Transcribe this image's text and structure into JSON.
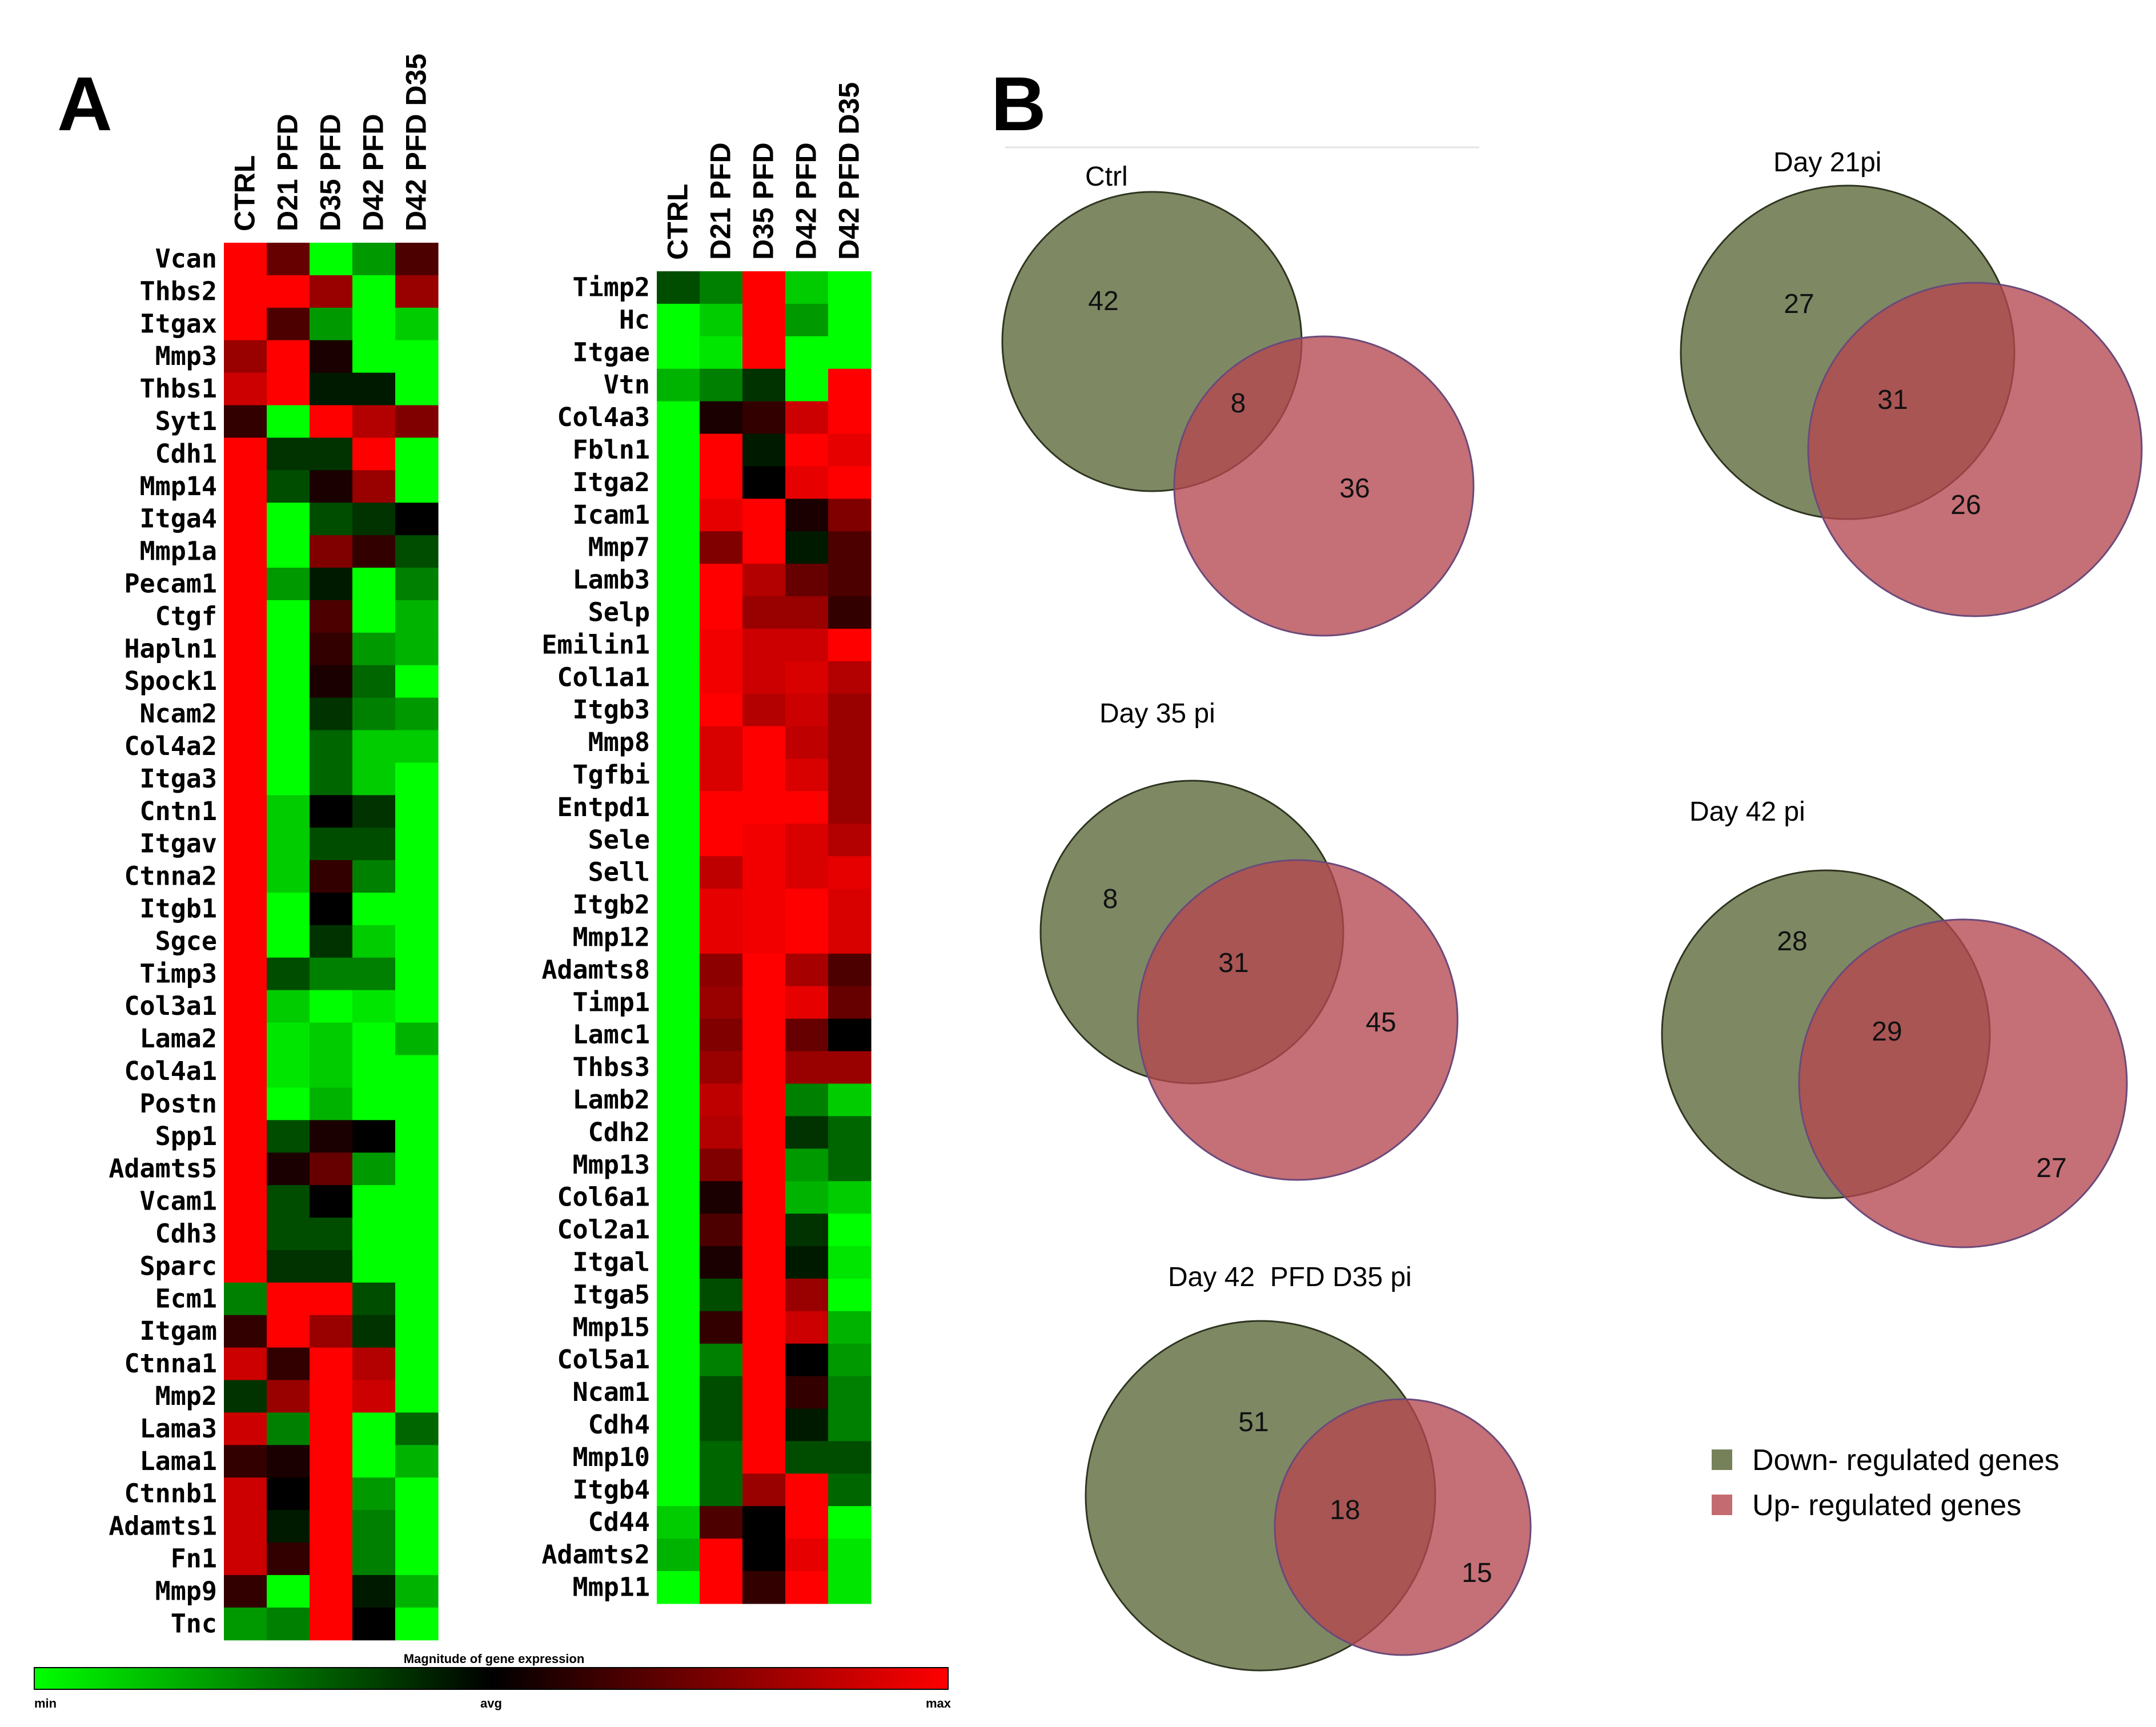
{
  "panel_labels": {
    "a": "A",
    "b": "B"
  },
  "colors": {
    "min": "#00ff00",
    "avg": "#000000",
    "max": "#ff0000",
    "down": "#5e6b3d",
    "up": "#b5464f"
  },
  "chart_data": [
    {
      "type": "heatmap",
      "title": "",
      "columns": [
        "CTRL",
        "D21 PFD",
        "D35 PFD",
        "D42 PFD",
        "D42 PFD D35"
      ],
      "rows": [
        "Vcan",
        "Thbs2",
        "Itgax",
        "Mmp3",
        "Thbs1",
        "Syt1",
        "Cdh1",
        "Mmp14",
        "Itga4",
        "Mmp1a",
        "Pecam1",
        "Ctgf",
        "Hapln1",
        "Spock1",
        "Ncam2",
        "Col4a2",
        "Itga3",
        "Cntn1",
        "Itgav",
        "Ctnna2",
        "Itgb1",
        "Sgce",
        "Timp3",
        "Col3a1",
        "Lama2",
        "Col4a1",
        "Postn",
        "Spp1",
        "Adamts5",
        "Vcam1",
        "Cdh3",
        "Sparc",
        "Ecm1",
        "Itgam",
        "Ctnna1",
        "Mmp2",
        "Lama3",
        "Lama1",
        "Ctnnb1",
        "Adamts1",
        "Fn1",
        "Mmp9",
        "Tnc"
      ],
      "values": [
        [
          1,
          0.4,
          -1,
          -0.6,
          0.3
        ],
        [
          1,
          1,
          0.6,
          -1,
          0.6
        ],
        [
          1,
          0.3,
          -0.6,
          -1,
          -0.8
        ],
        [
          0.6,
          1,
          0.1,
          -1,
          -1
        ],
        [
          0.8,
          1,
          -0.1,
          -0.1,
          -1
        ],
        [
          0.2,
          -1,
          1,
          0.7,
          0.5
        ],
        [
          1,
          -0.2,
          -0.2,
          1,
          -1
        ],
        [
          1,
          -0.3,
          0.1,
          0.6,
          -1
        ],
        [
          1,
          -1,
          -0.3,
          -0.2,
          0
        ],
        [
          1,
          -1,
          0.5,
          0.2,
          -0.3
        ],
        [
          1,
          -0.6,
          -0.1,
          -1,
          -0.5
        ],
        [
          1,
          -1,
          0.3,
          -1,
          -0.7
        ],
        [
          1,
          -1,
          0.2,
          -0.6,
          -0.7
        ],
        [
          1,
          -1,
          0.1,
          -0.4,
          -1
        ],
        [
          1,
          -1,
          -0.2,
          -0.5,
          -0.6
        ],
        [
          1,
          -1,
          -0.4,
          -0.8,
          -0.8
        ],
        [
          1,
          -1,
          -0.4,
          -0.8,
          -1
        ],
        [
          1,
          -0.8,
          0,
          -0.2,
          -1
        ],
        [
          1,
          -0.8,
          -0.3,
          -0.3,
          -1
        ],
        [
          1,
          -0.8,
          0.2,
          -0.5,
          -1
        ],
        [
          1,
          -1,
          0,
          -1,
          -1
        ],
        [
          1,
          -1,
          -0.2,
          -0.8,
          -1
        ],
        [
          1,
          -0.3,
          -0.5,
          -0.5,
          -1
        ],
        [
          1,
          -0.8,
          -1,
          -0.9,
          -1
        ],
        [
          1,
          -0.9,
          -0.8,
          -1,
          -0.7
        ],
        [
          1,
          -0.9,
          -0.8,
          -1,
          -1
        ],
        [
          1,
          -1,
          -0.7,
          -1,
          -1
        ],
        [
          1,
          -0.3,
          0.1,
          0,
          -1
        ],
        [
          1,
          0.1,
          0.4,
          -0.6,
          -1
        ],
        [
          1,
          -0.3,
          0,
          -1,
          -1
        ],
        [
          1,
          -0.3,
          -0.3,
          -1,
          -1
        ],
        [
          1,
          -0.2,
          -0.2,
          -1,
          -1
        ],
        [
          -0.5,
          1,
          1,
          -0.3,
          -1
        ],
        [
          0.2,
          1,
          0.6,
          -0.2,
          -1
        ],
        [
          0.8,
          0.2,
          1,
          0.7,
          -1
        ],
        [
          -0.2,
          0.6,
          1,
          0.8,
          -1
        ],
        [
          0.8,
          -0.5,
          1,
          -1,
          -0.4
        ],
        [
          0.2,
          0.1,
          1,
          -1,
          -0.7
        ],
        [
          0.8,
          0,
          1,
          -0.6,
          -1
        ],
        [
          0.8,
          -0.1,
          1,
          -0.5,
          -1
        ],
        [
          0.8,
          0.2,
          1,
          -0.5,
          -1
        ],
        [
          0.2,
          -1,
          1,
          -0.1,
          -0.7
        ],
        [
          -0.6,
          -0.5,
          1,
          0,
          -1
        ]
      ],
      "value_range": [
        -1,
        1
      ]
    },
    {
      "type": "heatmap",
      "title": "",
      "columns": [
        "CTRL",
        "D21 PFD",
        "D35 PFD",
        "D42 PFD",
        "D42 PFD D35"
      ],
      "rows": [
        "Timp2",
        "Hc",
        "Itgae",
        "Vtn",
        "Col4a3",
        "Fbln1",
        "Itga2",
        "Icam1",
        "Mmp7",
        "Lamb3",
        "Selp",
        "Emilin1",
        "Col1a1",
        "Itgb3",
        "Mmp8",
        "Tgfbi",
        "Entpd1",
        "Sele",
        "Sell",
        "Itgb2",
        "Mmp12",
        "Adamts8",
        "Timp1",
        "Lamc1",
        "Thbs3",
        "Lamb2",
        "Cdh2",
        "Mmp13",
        "Col6a1",
        "Col2a1",
        "Itgal",
        "Itga5",
        "Mmp15",
        "Col5a1",
        "Ncam1",
        "Cdh4",
        "Mmp10",
        "Itgb4",
        "Cd44",
        "Adamts2",
        "Mmp11"
      ],
      "values": [
        [
          -0.3,
          -0.5,
          1,
          -0.8,
          -1
        ],
        [
          -1,
          -0.8,
          1,
          -0.6,
          -1
        ],
        [
          -1,
          -0.9,
          1,
          -1,
          -1
        ],
        [
          -0.7,
          -0.5,
          -0.2,
          -1,
          1
        ],
        [
          -1,
          0.1,
          0.2,
          0.8,
          1
        ],
        [
          -1,
          1,
          -0.1,
          1,
          0.9
        ],
        [
          -1,
          1,
          0,
          0.9,
          1
        ],
        [
          -1,
          0.9,
          1,
          0.1,
          0.5
        ],
        [
          -1,
          0.5,
          1,
          -0.1,
          0.3
        ],
        [
          -1,
          1,
          0.7,
          0.4,
          0.3
        ],
        [
          -1,
          1,
          0.6,
          0.6,
          0.2
        ],
        [
          -1,
          0.95,
          0.8,
          0.8,
          1
        ],
        [
          -1,
          0.95,
          0.8,
          0.85,
          0.7
        ],
        [
          -1,
          1,
          0.7,
          0.8,
          0.6
        ],
        [
          -1,
          0.85,
          1,
          0.75,
          0.6
        ],
        [
          -1,
          0.85,
          1,
          0.85,
          0.6
        ],
        [
          -1,
          1,
          1,
          1,
          0.6
        ],
        [
          -1,
          1,
          0.95,
          0.85,
          0.7
        ],
        [
          -1,
          0.75,
          0.95,
          0.85,
          0.9
        ],
        [
          -1,
          0.9,
          0.95,
          1,
          0.85
        ],
        [
          -1,
          0.9,
          0.95,
          1,
          0.85
        ],
        [
          -1,
          0.55,
          1,
          0.65,
          0.3
        ],
        [
          -1,
          0.6,
          1,
          0.9,
          0.4
        ],
        [
          -1,
          0.5,
          1,
          0.4,
          0
        ],
        [
          -1,
          0.6,
          1,
          0.6,
          0.6
        ],
        [
          -1,
          0.75,
          1,
          -0.5,
          -0.8
        ],
        [
          -1,
          0.7,
          1,
          -0.2,
          -0.4
        ],
        [
          -1,
          0.5,
          1,
          -0.6,
          -0.4
        ],
        [
          -1,
          0.1,
          1,
          -0.7,
          -0.8
        ],
        [
          -1,
          0.3,
          1,
          -0.2,
          -1
        ],
        [
          -1,
          0.1,
          1,
          -0.1,
          -0.9
        ],
        [
          -1,
          -0.3,
          1,
          0.6,
          -1
        ],
        [
          -1,
          0.2,
          1,
          0.8,
          -0.7
        ],
        [
          -1,
          -0.5,
          1,
          0,
          -0.6
        ],
        [
          -1,
          -0.3,
          1,
          0.2,
          -0.5
        ],
        [
          -1,
          -0.3,
          1,
          -0.1,
          -0.5
        ],
        [
          -1,
          -0.4,
          1,
          -0.3,
          -0.3
        ],
        [
          -1,
          -0.4,
          0.6,
          1,
          -0.4
        ],
        [
          -0.8,
          0.3,
          0,
          1,
          -1
        ],
        [
          -0.7,
          1,
          0,
          0.9,
          -0.9
        ],
        [
          -1,
          1,
          0.2,
          1,
          -0.9
        ]
      ],
      "value_range": [
        -1,
        1
      ]
    }
  ],
  "color_scale": {
    "title": "Magnitude of gene expression",
    "min_label": "min",
    "avg_label": "avg",
    "max_label": "max"
  },
  "venn": [
    {
      "title": "Ctrl",
      "down_only": "42",
      "both": "8",
      "up_only": "36"
    },
    {
      "title": "Day 21pi",
      "down_only": "27",
      "both": "31",
      "up_only": "26"
    },
    {
      "title": "Day 35 pi",
      "down_only": "8",
      "both": "31",
      "up_only": "45"
    },
    {
      "title": "Day 42 pi",
      "down_only": "28",
      "both": "29",
      "up_only": "27"
    },
    {
      "title": "Day 42  PFD D35 pi",
      "down_only": "51",
      "both": "18",
      "up_only": "15"
    }
  ],
  "legend": {
    "down_label": "Down- regulated genes",
    "up_label": "Up- regulated genes"
  }
}
